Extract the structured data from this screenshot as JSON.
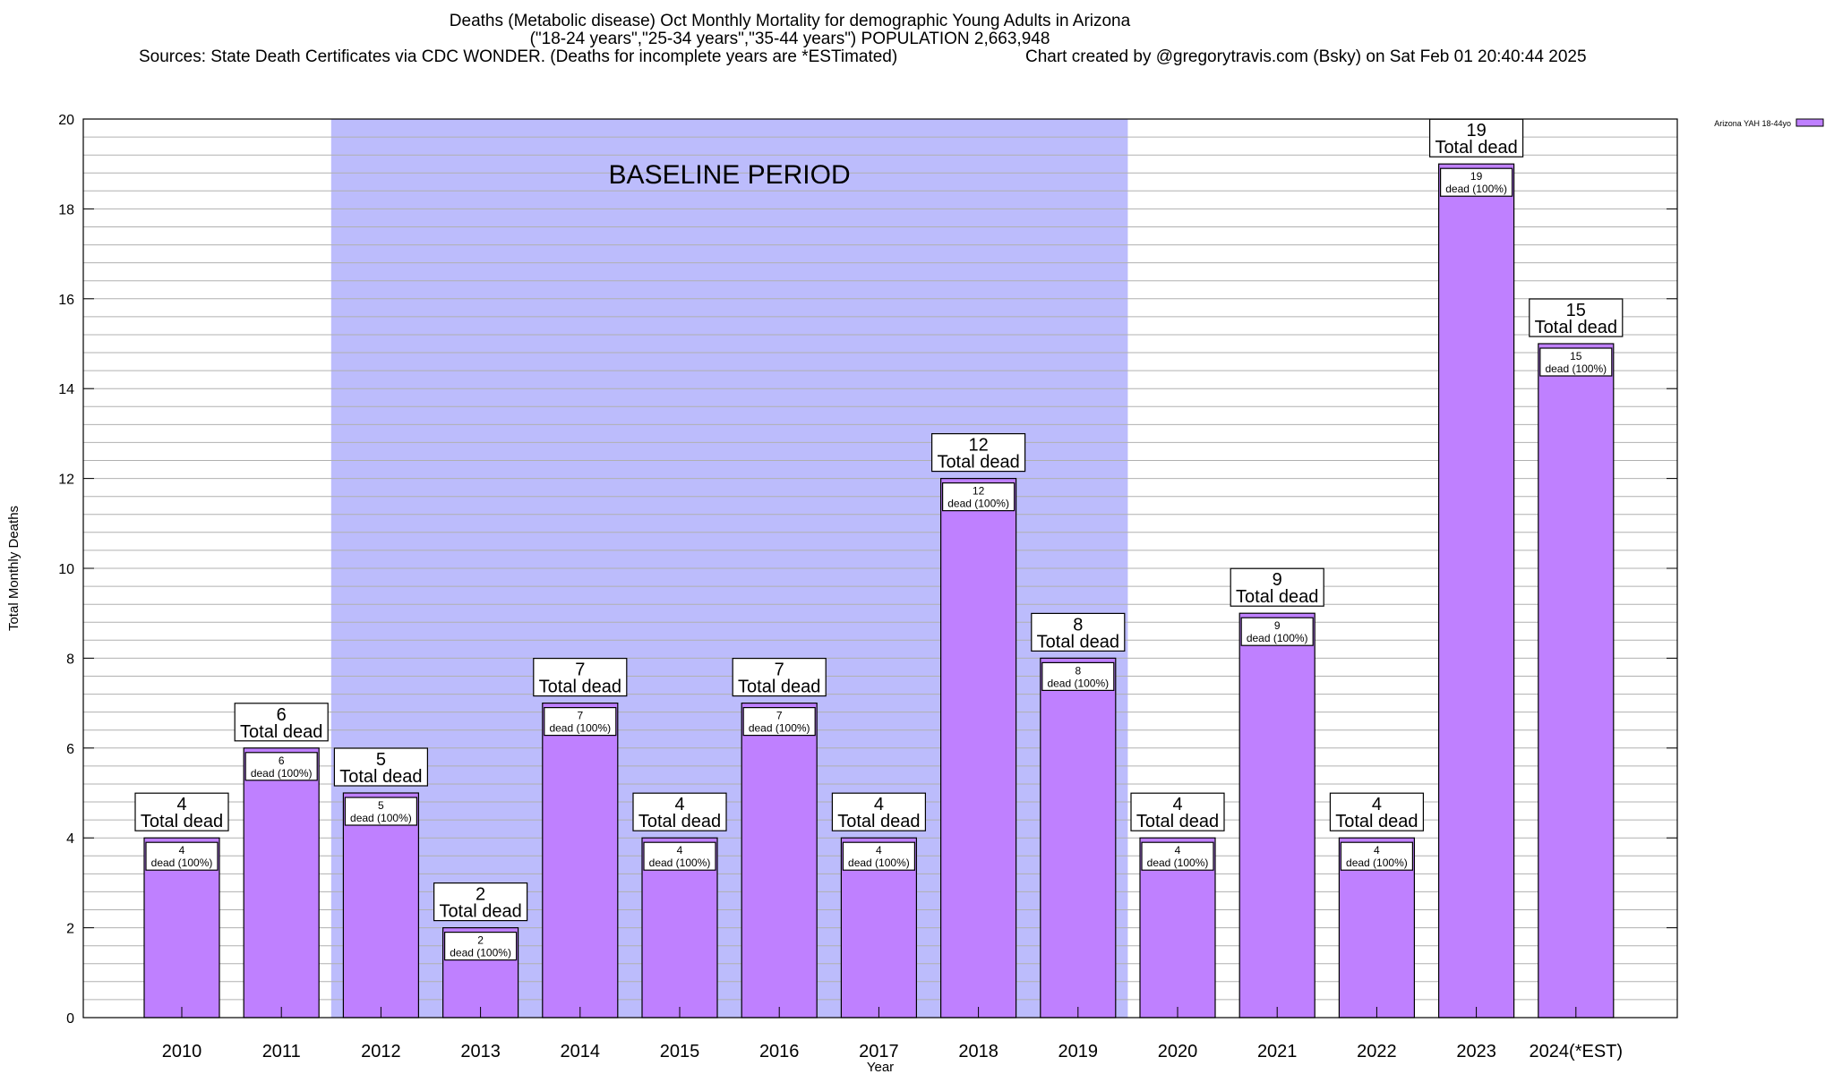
{
  "header": {
    "title_line1": "Deaths (Metabolic disease) Oct Monthly Mortality for demographic Young Adults in Arizona",
    "title_line2": "(\"18-24 years\",\"25-34 years\",\"35-44 years\") POPULATION 2,663,948",
    "sources": "Sources: State Death Certificates via CDC WONDER. (Deaths for incomplete years are *ESTimated)",
    "created_by": "Chart created by @gregorytravis.com (Bsky) on Sat Feb 01 20:40:44 2025"
  },
  "chart_data": {
    "type": "bar",
    "xlabel": "Year",
    "ylabel": "Total Monthly Deaths",
    "ylim": [
      0,
      20
    ],
    "y_ticks": [
      0,
      2,
      4,
      6,
      8,
      10,
      12,
      14,
      16,
      18,
      20
    ],
    "minor_grid_step": 0.4,
    "grid": true,
    "legend": {
      "placement": "top-right",
      "label": "Arizona YAH 18-44yo"
    },
    "categories": [
      "2010",
      "2011",
      "2012",
      "2013",
      "2014",
      "2015",
      "2016",
      "2017",
      "2018",
      "2019",
      "2020",
      "2021",
      "2022",
      "2023",
      "2024(*EST)"
    ],
    "series": [
      {
        "name": "Arizona YAH 18-44yo",
        "values": [
          4,
          6,
          5,
          2,
          7,
          4,
          7,
          4,
          12,
          8,
          4,
          9,
          4,
          19,
          15
        ]
      }
    ],
    "label_total_suffix": "Total dead",
    "label_inner_suffix": "dead (100%)",
    "baseline": {
      "label": "BASELINE PERIOD",
      "from": "2012",
      "to": "2019"
    },
    "colors": {
      "bar": "#bf80ff",
      "baseline": "#bcbcfc",
      "grid": "#b0b0b0"
    }
  }
}
